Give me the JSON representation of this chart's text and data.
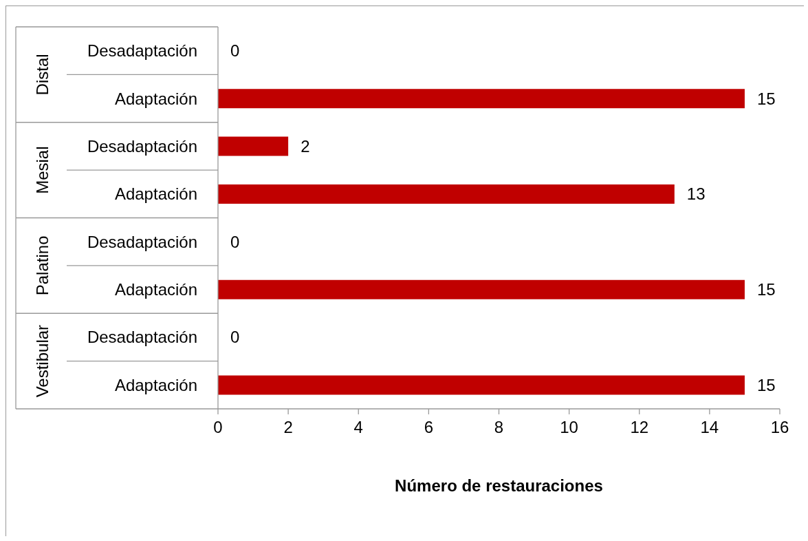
{
  "chart_data": {
    "type": "bar",
    "orientation": "horizontal",
    "xlabel": "Número de restauraciones",
    "categories": [
      "Desadaptación",
      "Adaptación",
      "Desadaptación",
      "Adaptación",
      "Desadaptación",
      "Adaptación",
      "Desadaptación",
      "Adaptación"
    ],
    "annotations": [
      "Distal",
      "Mesial",
      "Palatino",
      "Vestibular"
    ],
    "values": [
      0,
      15,
      2,
      13,
      0,
      15,
      0,
      15
    ],
    "color": "#c00000",
    "xlim": [
      0,
      16
    ],
    "xticks": [
      0,
      2,
      4,
      6,
      8,
      10,
      12,
      14,
      16
    ],
    "data_labels": true
  }
}
